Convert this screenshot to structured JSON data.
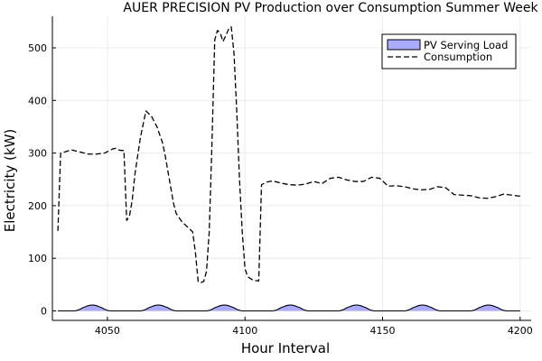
{
  "chart_data": {
    "type": "area",
    "title": "AUER PRECISION PV Production over Consumption Summer Week",
    "xlabel": "Hour Interval",
    "ylabel": "Electricity (kW)",
    "xlim": [
      4030,
      4204
    ],
    "ylim": [
      -18,
      560
    ],
    "xticks": [
      4050,
      4100,
      4150,
      4200
    ],
    "yticks": [
      0,
      100,
      200,
      300,
      400,
      500
    ],
    "grid": true,
    "legend": "top-right",
    "series": [
      {
        "name": "PV Serving Load",
        "style": "filled-area",
        "color": "#aaaaff",
        "edge_color": "#000000",
        "x": [
          4032,
          4038,
          4039,
          4040,
          4041,
          4042,
          4043,
          4044,
          4045,
          4046,
          4047,
          4048,
          4049,
          4050,
          4051,
          4062,
          4063,
          4064,
          4065,
          4066,
          4067,
          4068,
          4069,
          4070,
          4071,
          4072,
          4073,
          4074,
          4075,
          4086,
          4087,
          4088,
          4089,
          4090,
          4091,
          4092,
          4093,
          4094,
          4095,
          4096,
          4097,
          4098,
          4099,
          4110,
          4111,
          4112,
          4113,
          4114,
          4115,
          4116,
          4117,
          4118,
          4119,
          4120,
          4121,
          4122,
          4123,
          4134,
          4135,
          4136,
          4137,
          4138,
          4139,
          4140,
          4141,
          4142,
          4143,
          4144,
          4145,
          4146,
          4147,
          4158,
          4159,
          4160,
          4161,
          4162,
          4163,
          4164,
          4165,
          4166,
          4167,
          4168,
          4169,
          4170,
          4171,
          4182,
          4183,
          4184,
          4185,
          4186,
          4187,
          4188,
          4189,
          4190,
          4191,
          4192,
          4193,
          4194,
          4195,
          4200
        ],
        "values": [
          0,
          0,
          1,
          3,
          6,
          8,
          10,
          11,
          11,
          10,
          8,
          6,
          3,
          1,
          0,
          0,
          1,
          3,
          6,
          8,
          10,
          11,
          11,
          10,
          8,
          6,
          3,
          1,
          0,
          0,
          1,
          3,
          6,
          8,
          10,
          11,
          11,
          10,
          8,
          6,
          3,
          1,
          0,
          0,
          1,
          3,
          6,
          8,
          10,
          11,
          11,
          10,
          8,
          6,
          3,
          1,
          0,
          0,
          1,
          3,
          6,
          8,
          10,
          11,
          11,
          10,
          8,
          6,
          3,
          1,
          0,
          0,
          1,
          3,
          6,
          8,
          10,
          11,
          11,
          10,
          8,
          6,
          3,
          1,
          0,
          0,
          1,
          3,
          6,
          8,
          10,
          11,
          11,
          10,
          8,
          6,
          3,
          1,
          0,
          0
        ]
      },
      {
        "name": "Consumption",
        "style": "dashed-line",
        "color": "#000000",
        "x": [
          4032,
          4033,
          4035,
          4037,
          4040,
          4043,
          4046,
          4049,
          4052,
          4053,
          4054,
          4055,
          4056,
          4057,
          4058,
          4059,
          4060,
          4062,
          4064,
          4066,
          4068,
          4069,
          4070,
          4071,
          4072,
          4073,
          4074,
          4075,
          4077,
          4079,
          4080,
          4081,
          4082,
          4083,
          4084,
          4085,
          4086,
          4087,
          4088,
          4089,
          4090,
          4091,
          4092,
          4093,
          4094,
          4095,
          4096,
          4097,
          4098,
          4099,
          4100,
          4101,
          4103,
          4105,
          4106,
          4108,
          4110,
          4113,
          4116,
          4119,
          4122,
          4125,
          4128,
          4131,
          4134,
          4137,
          4140,
          4143,
          4146,
          4149,
          4152,
          4155,
          4158,
          4161,
          4164,
          4167,
          4170,
          4173,
          4176,
          4179,
          4182,
          4185,
          4188,
          4191,
          4194,
          4197,
          4200
        ],
        "values": [
          152,
          300,
          303,
          306,
          302,
          298,
          298,
          300,
          308,
          309,
          306,
          305,
          305,
          172,
          180,
          210,
          260,
          330,
          380,
          370,
          350,
          335,
          320,
          295,
          265,
          235,
          205,
          185,
          170,
          160,
          155,
          150,
          110,
          55,
          54,
          56,
          75,
          150,
          320,
          515,
          533,
          528,
          512,
          523,
          535,
          540,
          490,
          380,
          250,
          150,
          80,
          65,
          58,
          57,
          240,
          245,
          247,
          243,
          240,
          239,
          241,
          246,
          242,
          252,
          254,
          249,
          246,
          246,
          254,
          252,
          237,
          238,
          236,
          232,
          230,
          231,
          236,
          234,
          221,
          220,
          219,
          215,
          214,
          217,
          222,
          220,
          218
        ]
      }
    ]
  }
}
